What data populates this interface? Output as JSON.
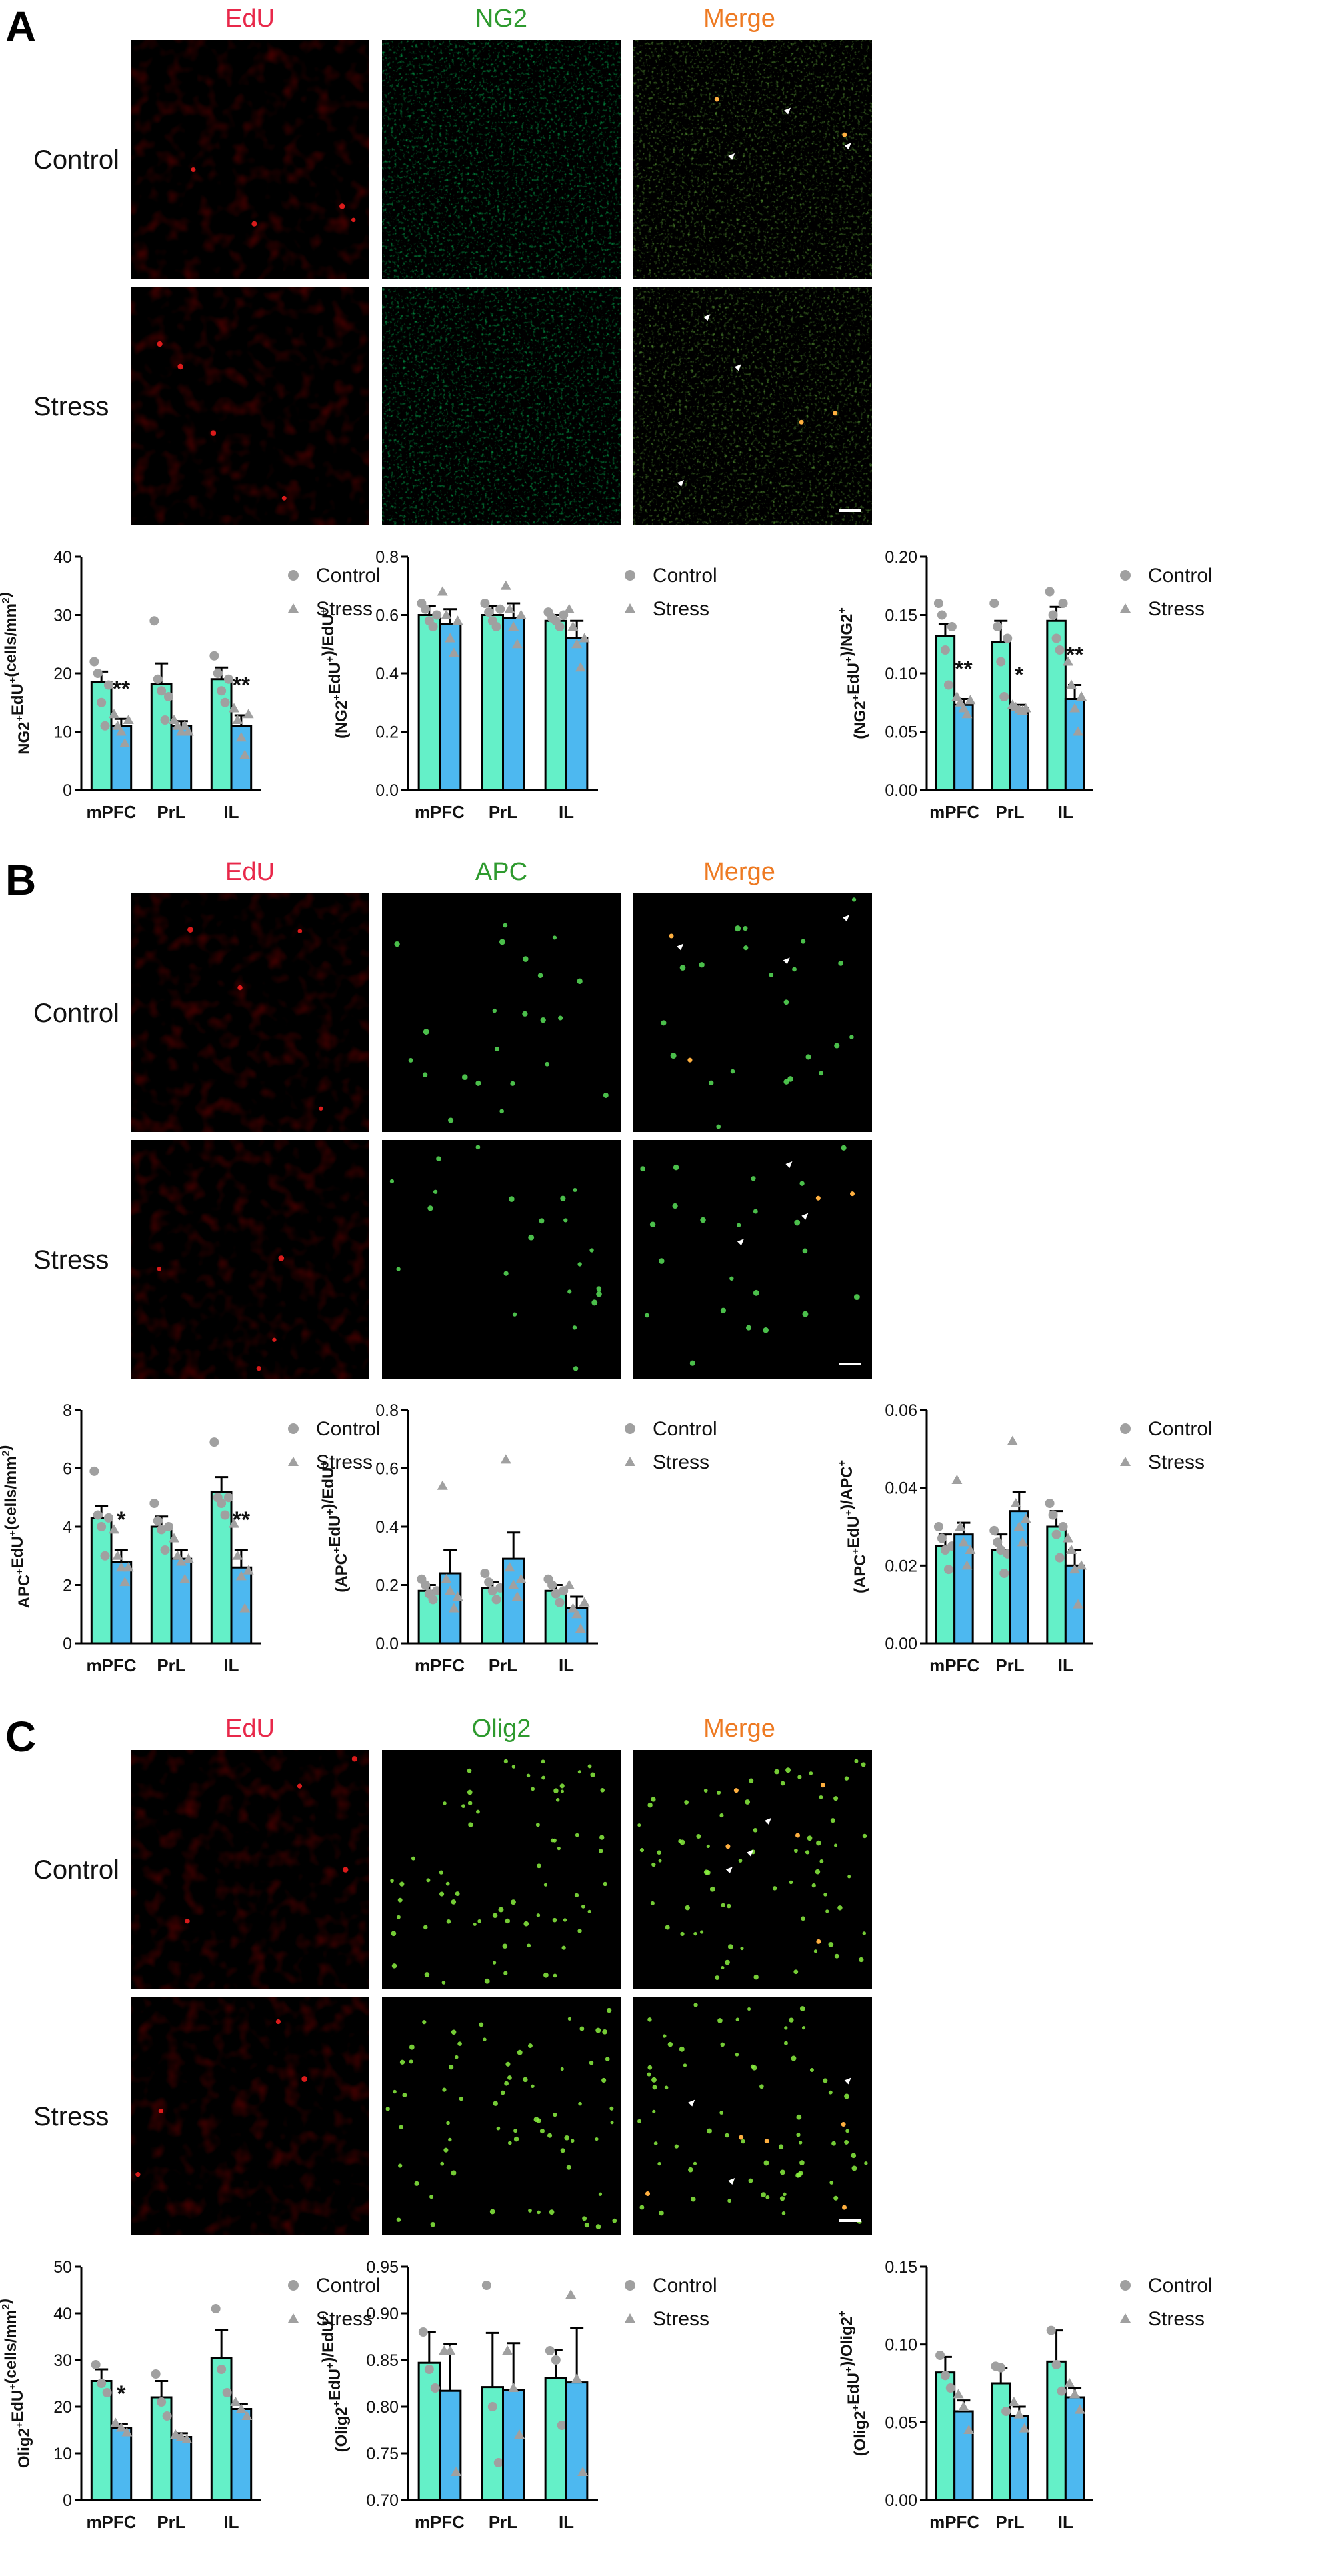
{
  "colors": {
    "control_bar": "#64f0c8",
    "stress_bar": "#4db8f0",
    "point": "#a0a0a0",
    "edu_label": "#e8284a",
    "marker_label": "#2e9a2e",
    "merge_label": "#ee7a22"
  },
  "legend": {
    "control": "Control",
    "stress": "Stress"
  },
  "categories": [
    "mPFC",
    "PrL",
    "IL"
  ],
  "panels": [
    {
      "letter": "A",
      "channels": [
        "EdU",
        "NG2",
        "Merge"
      ],
      "rows": [
        "Control",
        "Stress"
      ],
      "marker": "ng2",
      "charts": [
        {
          "ylabel_main": "NG2",
          "ylabel_sup1": "+",
          "ylabel_mid": "EdU",
          "ylabel_sup2": "+",
          "ylabel_tail": "(cells/mm",
          "ylabel_sup3": "2",
          "ylabel_end": ")",
          "ylim": [
            0,
            40
          ],
          "ticks": [
            "0",
            "10",
            "20",
            "30",
            "40"
          ],
          "control": [
            18.5,
            18.2,
            19.0
          ],
          "control_err": [
            1.8,
            3.5,
            2.0
          ],
          "stress": [
            11.0,
            11.0,
            11.0
          ],
          "stress_err": [
            1.2,
            0.8,
            1.8
          ],
          "control_pts": [
            [
              22,
              20,
              15,
              11,
              18
            ],
            [
              29,
              19,
              17,
              12,
              16
            ],
            [
              23,
              20,
              17,
              15,
              19
            ]
          ],
          "stress_pts": [
            [
              13,
              11,
              10,
              8,
              12
            ],
            [
              12,
              11,
              10,
              11,
              10
            ],
            [
              14,
              12,
              9,
              6,
              13
            ]
          ],
          "sig": [
            "**",
            "",
            "**"
          ]
        },
        {
          "ylabel_main": "(NG2",
          "ylabel_sup1": "+",
          "ylabel_mid": "EdU",
          "ylabel_sup2": "+",
          "ylabel_tail": ")/EdU",
          "ylabel_sup3": "+",
          "ylabel_end": "",
          "ylim": [
            0,
            0.8
          ],
          "ticks": [
            "0.0",
            "0.2",
            "0.4",
            "0.6",
            "0.8"
          ],
          "control": [
            0.6,
            0.6,
            0.58
          ],
          "control_err": [
            0.03,
            0.03,
            0.02
          ],
          "stress": [
            0.57,
            0.59,
            0.52
          ],
          "stress_err": [
            0.05,
            0.05,
            0.06
          ],
          "control_pts": [
            [
              0.64,
              0.62,
              0.58,
              0.56,
              0.6
            ],
            [
              0.64,
              0.61,
              0.58,
              0.56,
              0.62
            ],
            [
              0.61,
              0.59,
              0.58,
              0.56,
              0.6
            ]
          ],
          "stress_pts": [
            [
              0.68,
              0.6,
              0.52,
              0.47,
              0.58
            ],
            [
              0.7,
              0.62,
              0.56,
              0.5,
              0.6
            ],
            [
              0.62,
              0.56,
              0.5,
              0.42,
              0.52
            ]
          ],
          "sig": [
            "",
            "",
            ""
          ]
        },
        {
          "ylabel_main": "(NG2",
          "ylabel_sup1": "+",
          "ylabel_mid": "EdU",
          "ylabel_sup2": "+",
          "ylabel_tail": ")/NG2",
          "ylabel_sup3": "+",
          "ylabel_end": "",
          "ylim": [
            0,
            0.2
          ],
          "ticks": [
            "0.00",
            "0.05",
            "0.10",
            "0.15",
            "0.20"
          ],
          "control": [
            0.132,
            0.127,
            0.145
          ],
          "control_err": [
            0.01,
            0.018,
            0.012
          ],
          "stress": [
            0.073,
            0.07,
            0.078
          ],
          "stress_err": [
            0.005,
            0.003,
            0.012
          ],
          "control_pts": [
            [
              0.16,
              0.15,
              0.12,
              0.09,
              0.14
            ],
            [
              0.16,
              0.14,
              0.11,
              0.08,
              0.13
            ],
            [
              0.17,
              0.15,
              0.13,
              0.12,
              0.16
            ]
          ],
          "stress_pts": [
            [
              0.08,
              0.075,
              0.07,
              0.065,
              0.077
            ],
            [
              0.073,
              0.071,
              0.069,
              0.068,
              0.07
            ],
            [
              0.11,
              0.09,
              0.07,
              0.05,
              0.08
            ]
          ],
          "sig": [
            "**",
            "*",
            "**"
          ]
        }
      ]
    },
    {
      "letter": "B",
      "channels": [
        "EdU",
        "APC",
        "Merge"
      ],
      "rows": [
        "Control",
        "Stress"
      ],
      "marker": "apc",
      "charts": [
        {
          "ylabel_main": "APC",
          "ylabel_sup1": "+",
          "ylabel_mid": "EdU",
          "ylabel_sup2": "+",
          "ylabel_tail": "(cells/mm",
          "ylabel_sup3": "2",
          "ylabel_end": ")",
          "ylim": [
            0,
            8
          ],
          "ticks": [
            "0",
            "2",
            "4",
            "6",
            "8"
          ],
          "control": [
            4.3,
            4.0,
            5.2
          ],
          "control_err": [
            0.4,
            0.35,
            0.5
          ],
          "stress": [
            2.8,
            2.9,
            2.6
          ],
          "stress_err": [
            0.4,
            0.3,
            0.6
          ],
          "control_pts": [
            [
              5.9,
              4.4,
              4.0,
              3.0,
              4.3
            ],
            [
              4.8,
              4.2,
              3.9,
              3.2,
              4.0
            ],
            [
              6.9,
              5.0,
              4.8,
              4.4,
              5.0
            ]
          ],
          "stress_pts": [
            [
              3.9,
              3.0,
              2.6,
              2.1,
              2.6
            ],
            [
              3.6,
              3.0,
              2.8,
              2.2,
              2.9
            ],
            [
              4.1,
              3.0,
              2.3,
              1.2,
              2.5
            ]
          ],
          "sig": [
            "*",
            "",
            "**"
          ]
        },
        {
          "ylabel_main": "(APC",
          "ylabel_sup1": "+",
          "ylabel_mid": "EdU",
          "ylabel_sup2": "+",
          "ylabel_tail": ")/EdU",
          "ylabel_sup3": "+",
          "ylabel_end": "",
          "ylim": [
            0,
            0.8
          ],
          "ticks": [
            "0.0",
            "0.2",
            "0.4",
            "0.6",
            "0.8"
          ],
          "control": [
            0.18,
            0.19,
            0.18
          ],
          "control_err": [
            0.02,
            0.02,
            0.02
          ],
          "stress": [
            0.24,
            0.29,
            0.12
          ],
          "stress_err": [
            0.08,
            0.09,
            0.04
          ],
          "control_pts": [
            [
              0.22,
              0.2,
              0.17,
              0.15,
              0.18
            ],
            [
              0.24,
              0.21,
              0.18,
              0.15,
              0.19
            ],
            [
              0.22,
              0.2,
              0.17,
              0.14,
              0.18
            ]
          ],
          "stress_pts": [
            [
              0.54,
              0.22,
              0.18,
              0.12,
              0.16
            ],
            [
              0.63,
              0.26,
              0.2,
              0.16,
              0.22
            ],
            [
              0.2,
              0.12,
              0.1,
              0.05,
              0.14
            ]
          ],
          "sig": [
            "",
            "",
            ""
          ]
        },
        {
          "ylabel_main": "(APC",
          "ylabel_sup1": "+",
          "ylabel_mid": "EdU",
          "ylabel_sup2": "+",
          "ylabel_tail": ")/APC",
          "ylabel_sup3": "+",
          "ylabel_end": "",
          "ylim": [
            0,
            0.06
          ],
          "ticks": [
            "0.00",
            "0.02",
            "0.04",
            "0.06"
          ],
          "control": [
            0.025,
            0.024,
            0.03
          ],
          "control_err": [
            0.003,
            0.004,
            0.004
          ],
          "stress": [
            0.028,
            0.034,
            0.02
          ],
          "stress_err": [
            0.003,
            0.005,
            0.004
          ],
          "control_pts": [
            [
              0.03,
              0.027,
              0.024,
              0.019,
              0.025
            ],
            [
              0.029,
              0.026,
              0.024,
              0.018,
              0.023
            ],
            [
              0.036,
              0.033,
              0.028,
              0.022,
              0.03
            ]
          ],
          "stress_pts": [
            [
              0.042,
              0.03,
              0.026,
              0.02,
              0.024
            ],
            [
              0.052,
              0.036,
              0.03,
              0.026,
              0.032
            ],
            [
              0.027,
              0.024,
              0.019,
              0.01,
              0.02
            ]
          ],
          "sig": [
            "",
            "",
            ""
          ]
        }
      ]
    },
    {
      "letter": "C",
      "channels": [
        "EdU",
        "Olig2",
        "Merge"
      ],
      "rows": [
        "Control",
        "Stress"
      ],
      "marker": "olig2",
      "charts": [
        {
          "ylabel_main": "Olig2",
          "ylabel_sup1": "+",
          "ylabel_mid": "EdU",
          "ylabel_sup2": "+",
          "ylabel_tail": "(cells/mm",
          "ylabel_sup3": "2",
          "ylabel_end": ")",
          "ylim": [
            0,
            50
          ],
          "ticks": [
            "0",
            "10",
            "20",
            "30",
            "40",
            "50"
          ],
          "control": [
            25.5,
            22.0,
            30.5
          ],
          "control_err": [
            2.5,
            3.5,
            6.0
          ],
          "stress": [
            15.5,
            13.5,
            19.5
          ],
          "stress_err": [
            0.8,
            0.8,
            1.0
          ],
          "control_pts": [
            [
              29,
              25,
              23
            ],
            [
              27,
              21,
              18
            ],
            [
              41,
              28,
              23
            ]
          ],
          "stress_pts": [
            [
              16.5,
              15.5,
              14.5
            ],
            [
              14,
              13.5,
              13
            ],
            [
              21,
              19.5,
              18
            ]
          ],
          "sig": [
            "*",
            "",
            ""
          ]
        },
        {
          "ylabel_main": "(Olig2",
          "ylabel_sup1": "+",
          "ylabel_mid": "EdU",
          "ylabel_sup2": "+",
          "ylabel_tail": ")/EdU",
          "ylabel_sup3": "+",
          "ylabel_end": "",
          "ylim": [
            0.7,
            0.95
          ],
          "ticks": [
            "0.70",
            "0.75",
            "0.80",
            "0.85",
            "0.90",
            "0.95"
          ],
          "control": [
            0.847,
            0.821,
            0.831
          ],
          "control_err": [
            0.033,
            0.058,
            0.03
          ],
          "stress": [
            0.817,
            0.818,
            0.826
          ],
          "stress_err": [
            0.05,
            0.05,
            0.058
          ],
          "control_pts": [
            [
              0.88,
              0.84,
              0.82
            ],
            [
              0.93,
              0.8,
              0.74
            ],
            [
              0.86,
              0.85,
              0.78
            ]
          ],
          "stress_pts": [
            [
              0.86,
              0.86,
              0.73
            ],
            [
              0.86,
              0.82,
              0.77
            ],
            [
              0.92,
              0.83,
              0.73
            ]
          ],
          "sig": [
            "",
            "",
            ""
          ]
        },
        {
          "ylabel_main": "(Olig2",
          "ylabel_sup1": "+",
          "ylabel_mid": "EdU",
          "ylabel_sup2": "+",
          "ylabel_tail": ")/Olig2",
          "ylabel_sup3": "+",
          "ylabel_end": "",
          "ylim": [
            0,
            0.15
          ],
          "ticks": [
            "0.00",
            "0.05",
            "0.10",
            "0.15"
          ],
          "control": [
            0.082,
            0.075,
            0.089
          ],
          "control_err": [
            0.01,
            0.01,
            0.02
          ],
          "stress": [
            0.057,
            0.054,
            0.066
          ],
          "stress_err": [
            0.007,
            0.006,
            0.006
          ],
          "control_pts": [
            [
              0.093,
              0.08,
              0.072
            ],
            [
              0.086,
              0.085,
              0.057
            ],
            [
              0.109,
              0.087,
              0.07
            ]
          ],
          "stress_pts": [
            [
              0.068,
              0.06,
              0.045
            ],
            [
              0.063,
              0.055,
              0.046
            ],
            [
              0.075,
              0.068,
              0.058
            ]
          ],
          "sig": [
            "",
            "",
            ""
          ]
        }
      ]
    }
  ]
}
